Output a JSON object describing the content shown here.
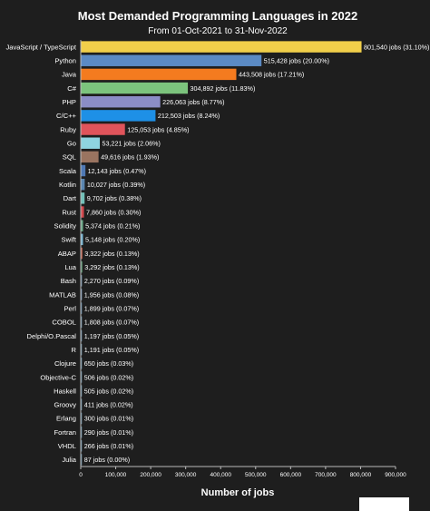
{
  "chart_data": {
    "type": "bar",
    "orientation": "horizontal",
    "title": "Most Demanded Programming Languages in 2022",
    "subtitle": "From 01-Oct-2021 to 31-Nov-2022",
    "xlabel": "Number of jobs",
    "ylabel": "",
    "xlim": [
      0,
      900000
    ],
    "xticks": [
      "0",
      "100,000",
      "200,000",
      "300,000",
      "400,000",
      "500,000",
      "600,000",
      "700,000",
      "800,000",
      "900,000"
    ],
    "grid": false,
    "legend": "none",
    "categories": [
      "JavaScript / TypeScript",
      "Python",
      "Java",
      "C#",
      "PHP",
      "C/C++",
      "Ruby",
      "Go",
      "SQL",
      "Scala",
      "Kotlin",
      "Dart",
      "Rust",
      "Solidity",
      "Swift",
      "ABAP",
      "Lua",
      "Bash",
      "MATLAB",
      "Perl",
      "COBOL",
      "Delphi/O.Pascal",
      "R",
      "Clojure",
      "Objective-C",
      "Haskell",
      "Groovy",
      "Erlang",
      "Fortran",
      "VHDL",
      "Julia"
    ],
    "values": [
      801540,
      515428,
      443508,
      304892,
      226063,
      212503,
      125053,
      53221,
      49616,
      12143,
      10027,
      9702,
      7860,
      5374,
      5148,
      3322,
      3292,
      2270,
      1956,
      1899,
      1808,
      1197,
      1191,
      650,
      506,
      505,
      411,
      300,
      290,
      266,
      87
    ],
    "data_labels": [
      "801,540 jobs (31.10%)",
      "515,428 jobs (20.00%)",
      "443,508 jobs (17.21%)",
      "304,892 jobs (11.83%)",
      "226,063 jobs (8.77%)",
      "212,503 jobs (8.24%)",
      "125,053 jobs (4.85%)",
      "53,221 jobs (2.06%)",
      "49,616 jobs (1.93%)",
      "12,143 jobs (0.47%)",
      "10,027 jobs (0.39%)",
      "9,702 jobs (0.38%)",
      "7,860 jobs (0.30%)",
      "5,374 jobs (0.21%)",
      "5,148 jobs (0.20%)",
      "3,322 jobs (0.13%)",
      "3,292 jobs (0.13%)",
      "2,270 jobs (0.09%)",
      "1,956 jobs (0.08%)",
      "1,899 jobs (0.07%)",
      "1,808 jobs (0.07%)",
      "1,197 jobs (0.05%)",
      "1,191 jobs (0.05%)",
      "650 jobs (0.03%)",
      "506 jobs (0.02%)",
      "505 jobs (0.02%)",
      "411 jobs (0.02%)",
      "300 jobs (0.01%)",
      "290 jobs (0.01%)",
      "266 jobs (0.01%)",
      "87 jobs (0.00%)"
    ],
    "colors": [
      "#f1cf4a",
      "#5b8ac4",
      "#f47b1f",
      "#7cc47d",
      "#8b8dc6",
      "#1e90e6",
      "#e0545b",
      "#8fd4e0",
      "#9a7460",
      "#4f79b5",
      "#5a86b0",
      "#72c0b8",
      "#d24a4f",
      "#6aa887",
      "#7ab8d6",
      "#c0604c",
      "#5a9270",
      "#6c8aa4",
      "#7a96b8",
      "#5c86a6",
      "#6f90a8",
      "#6a88a2",
      "#7090a6",
      "#6688a0",
      "#6688a0",
      "#6688a0",
      "#6688a0",
      "#6688a0",
      "#6688a0",
      "#6688a0",
      "#6688a0"
    ]
  }
}
